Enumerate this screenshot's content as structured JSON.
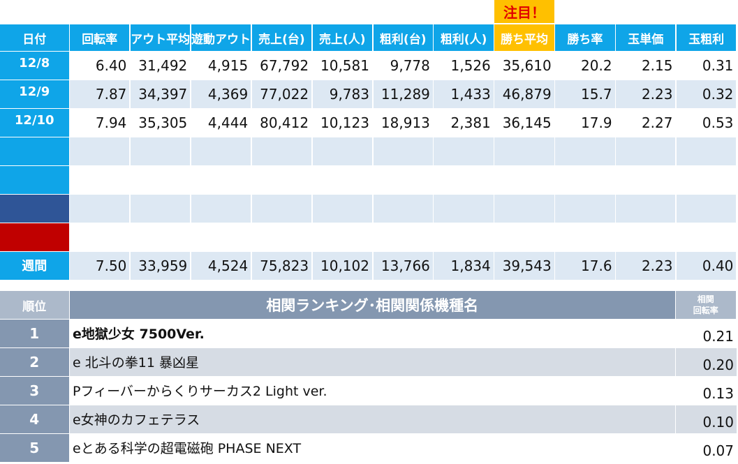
{
  "table1": {
    "highlight": "注目！",
    "headers": [
      "日付",
      "回転率",
      "アウト平均",
      "遊動アウト",
      "売上(台)",
      "売上(人)",
      "粗利(台)",
      "粗利(人)",
      "勝ち平均",
      "勝ち率",
      "玉単価",
      "玉粗利"
    ],
    "rows": [
      [
        "12/8",
        "6.40",
        "31,492",
        "4,915",
        "67,792",
        "10,581",
        "9,778",
        "1,526",
        "35,610",
        "20.2",
        "2.15",
        "0.31"
      ],
      [
        "12/9",
        "7.87",
        "34,397",
        "4,369",
        "77,022",
        "9,783",
        "11,289",
        "1,433",
        "46,879",
        "15.7",
        "2.23",
        "0.32"
      ],
      [
        "12/10",
        "7.94",
        "35,305",
        "4,444",
        "80,412",
        "10,123",
        "18,913",
        "2,381",
        "36,145",
        "17.9",
        "2.27",
        "0.53"
      ]
    ],
    "summary": [
      "週間",
      "7.50",
      "33,959",
      "4,524",
      "75,823",
      "10,102",
      "13,766",
      "1,834",
      "39,543",
      "17.6",
      "2.23",
      "0.40"
    ]
  },
  "table2": {
    "headers": [
      "順位",
      "相関ランキング･相関関係機種名",
      "相関\n回転率"
    ],
    "rows": [
      [
        "1",
        "e地獄少女 7500Ver.",
        "0.21"
      ],
      [
        "2",
        "e 北斗の拳11 暴凶星",
        "0.20"
      ],
      [
        "3",
        "Pフィーバーからくりサーカス2 Light ver.",
        "0.13"
      ],
      [
        "4",
        "e女神のカフェテラス",
        "0.10"
      ],
      [
        "5",
        "eとある科学の超電磁砲 PHASE NEXT",
        "0.07"
      ]
    ]
  }
}
